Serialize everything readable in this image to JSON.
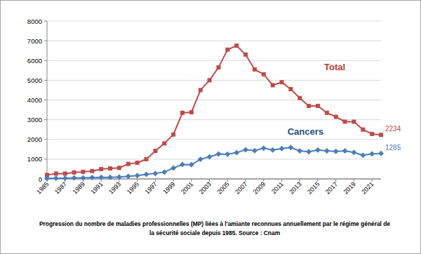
{
  "chart_data": {
    "type": "line",
    "x": [
      1985,
      1986,
      1987,
      1988,
      1989,
      1990,
      1991,
      1992,
      1993,
      1994,
      1995,
      1996,
      1997,
      1998,
      1999,
      2000,
      2001,
      2002,
      2003,
      2004,
      2005,
      2006,
      2007,
      2008,
      2009,
      2010,
      2011,
      2012,
      2013,
      2014,
      2015,
      2016,
      2017,
      2018,
      2019,
      2020,
      2021,
      2022
    ],
    "series": [
      {
        "name": "Total",
        "color": "#be4b48",
        "marker": "square",
        "values": [
          200,
          270,
          270,
          330,
          360,
          400,
          500,
          530,
          560,
          760,
          820,
          1000,
          1420,
          1800,
          2250,
          3350,
          3380,
          4500,
          5000,
          5650,
          6550,
          6750,
          6300,
          5550,
          5300,
          4750,
          4900,
          4550,
          4100,
          3700,
          3700,
          3350,
          3150,
          2900,
          2900,
          2500,
          2280,
          2234
        ],
        "value_labels": [
          null,
          null,
          null,
          null,
          null,
          null,
          null,
          null,
          null,
          null,
          null,
          null,
          null,
          null,
          null,
          null,
          null,
          null,
          null,
          null,
          null,
          null,
          null,
          null,
          null,
          null,
          null,
          null,
          null,
          null,
          null,
          null,
          null,
          null,
          null,
          null,
          null,
          "2234"
        ]
      },
      {
        "name": "Cancers",
        "color": "#4a7ebb",
        "marker": "diamond",
        "values": [
          30,
          40,
          40,
          50,
          50,
          70,
          80,
          80,
          100,
          130,
          170,
          230,
          280,
          350,
          550,
          730,
          720,
          1000,
          1120,
          1260,
          1250,
          1330,
          1480,
          1430,
          1560,
          1470,
          1540,
          1590,
          1420,
          1380,
          1470,
          1420,
          1400,
          1420,
          1340,
          1200,
          1270,
          1285
        ],
        "value_labels": [
          null,
          null,
          null,
          null,
          null,
          null,
          null,
          null,
          null,
          null,
          null,
          null,
          null,
          null,
          null,
          null,
          null,
          null,
          null,
          null,
          null,
          null,
          null,
          null,
          null,
          null,
          null,
          null,
          null,
          null,
          null,
          null,
          null,
          null,
          null,
          null,
          null,
          "1285"
        ]
      }
    ],
    "xlim": [
      1985,
      2022
    ],
    "xticks": [
      1985,
      1987,
      1989,
      1991,
      1993,
      1995,
      1997,
      1999,
      2001,
      2003,
      2005,
      2007,
      2009,
      2011,
      2013,
      2015,
      2017,
      2019,
      2021
    ],
    "ylim": [
      0,
      8000
    ],
    "yticks": [
      0,
      1000,
      2000,
      3000,
      4000,
      5000,
      6000,
      7000,
      8000
    ],
    "grid": true,
    "caption": [
      "Progression du nombre de maladies professionnelles (MP) liées à l'amiante reconnues annuellement par le régime général de",
      "la sécurité sociale depuis 1985. Source : Cnam"
    ]
  }
}
